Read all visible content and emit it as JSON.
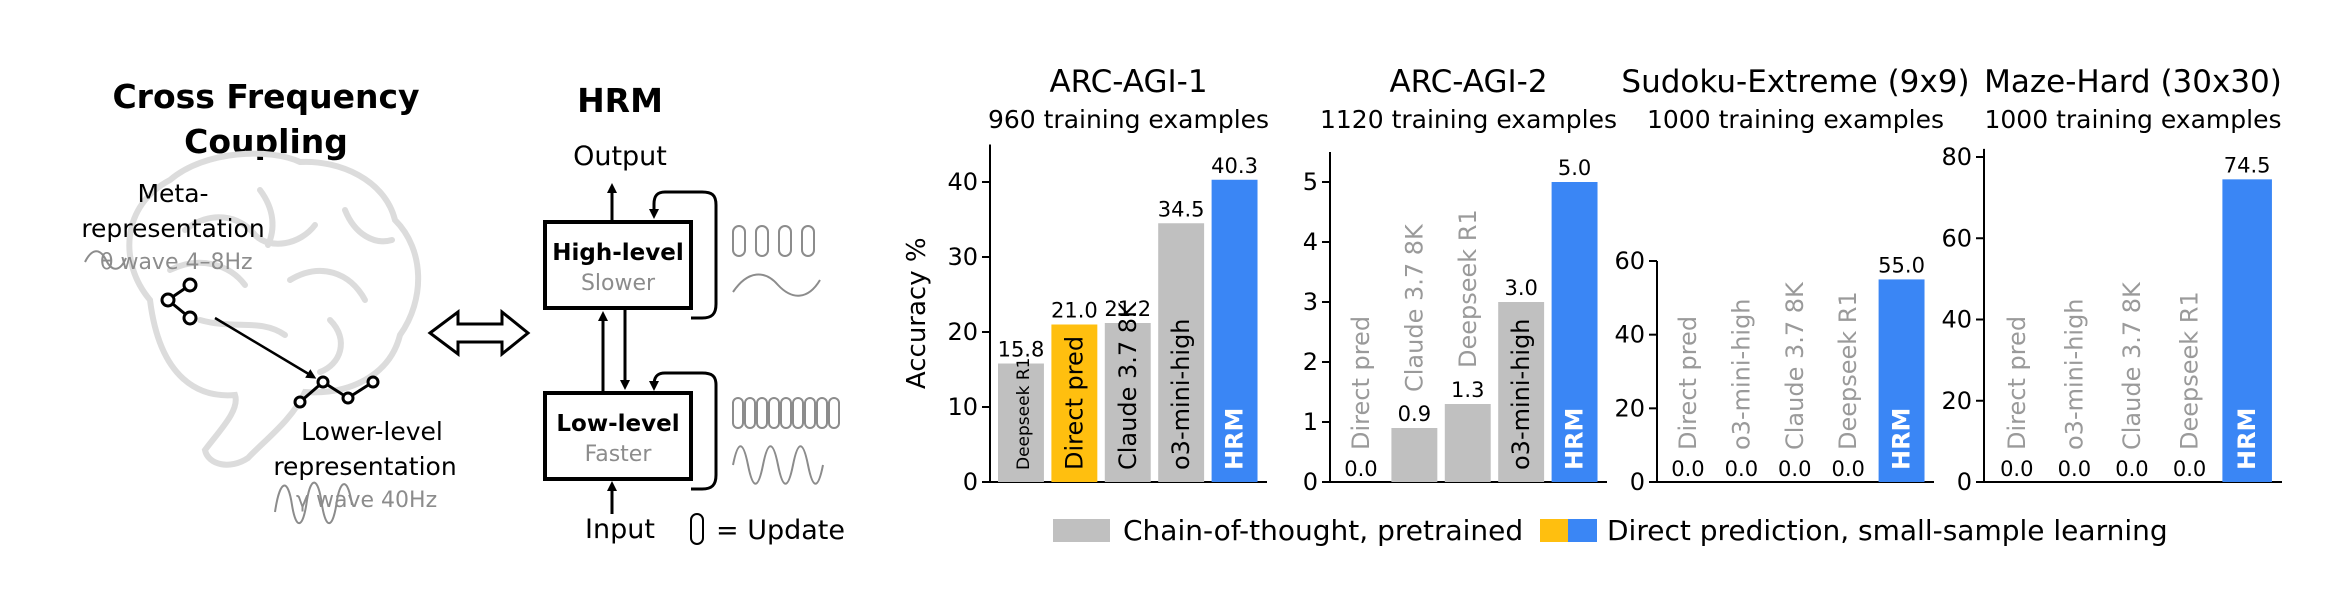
{
  "colors": {
    "cot": "#c0c0c0",
    "direct": "#ffbf0f",
    "hrm": "#3a86f5",
    "axis": "#000000",
    "brain": "#dcdcdc",
    "annotation_gray": "#8c8c8c"
  },
  "left": {
    "cfc_title_line1": "Cross Frequency",
    "cfc_title_line2": "Coupling",
    "meta_line1": "Meta-",
    "meta_line2": "representation",
    "theta": "θ wave 4–8Hz",
    "lower_line1": "Lower-level",
    "lower_line2": "representation",
    "gamma": "γ wave 40Hz",
    "hrm_title": "HRM",
    "output": "Output",
    "input": "Input",
    "high_label": "High-level",
    "high_sub": "Slower",
    "low_label": "Low-level",
    "low_sub": "Faster",
    "update_legend": "= Update"
  },
  "legend": {
    "cot_label": "Chain-of-thought, pretrained",
    "direct_label": "Direct prediction, small-sample learning"
  },
  "chart_data": [
    {
      "type": "bar",
      "title": "ARC-AGI-1",
      "subtitle": "960 training examples",
      "ylabel": "Accuracy %",
      "ylim": [
        0,
        45
      ],
      "yticks": [
        0,
        10,
        20,
        30,
        40
      ],
      "categories": [
        "Deepseek R1",
        "Direct pred",
        "Claude 3.7 8K",
        "o3-mini-high",
        "HRM"
      ],
      "values": [
        15.8,
        21.0,
        21.2,
        34.5,
        40.3
      ],
      "value_labels": [
        "15.8",
        "21.0",
        "21.2",
        "34.5",
        "40.3"
      ],
      "kinds": [
        "cot",
        "direct",
        "cot",
        "cot",
        "hrm"
      ]
    },
    {
      "type": "bar",
      "title": "ARC-AGI-2",
      "subtitle": "1120 training examples",
      "ylabel": "",
      "ylim": [
        0,
        5.5
      ],
      "yticks": [
        0,
        1,
        2,
        3,
        4,
        5
      ],
      "categories": [
        "Direct pred",
        "Claude 3.7 8K",
        "Deepseek R1",
        "o3-mini-high",
        "HRM"
      ],
      "values": [
        0.0,
        0.9,
        1.3,
        3.0,
        5.0
      ],
      "value_labels": [
        "0.0",
        "0.9",
        "1.3",
        "3.0",
        "5.0"
      ],
      "kinds": [
        "direct",
        "cot",
        "cot",
        "cot",
        "hrm"
      ]
    },
    {
      "type": "bar",
      "title": "Sudoku-Extreme (9x9)",
      "subtitle": "1000 training examples",
      "ylabel": "",
      "ylim": [
        0,
        60
      ],
      "yticks": [
        0,
        20,
        40,
        60
      ],
      "categories": [
        "Direct pred",
        "o3-mini-high",
        "Claude 3.7 8K",
        "Deepseek R1",
        "HRM"
      ],
      "values": [
        0.0,
        0.0,
        0.0,
        0.0,
        55.0
      ],
      "value_labels": [
        "0.0",
        "0.0",
        "0.0",
        "0.0",
        "55.0"
      ],
      "kinds": [
        "direct",
        "cot",
        "cot",
        "cot",
        "hrm"
      ]
    },
    {
      "type": "bar",
      "title": "Maze-Hard (30x30)",
      "subtitle": "1000 training examples",
      "ylabel": "",
      "ylim": [
        0,
        82
      ],
      "yticks": [
        0,
        20,
        40,
        60,
        80
      ],
      "categories": [
        "Direct pred",
        "o3-mini-high",
        "Claude 3.7 8K",
        "Deepseek R1",
        "HRM"
      ],
      "values": [
        0.0,
        0.0,
        0.0,
        0.0,
        74.5
      ],
      "value_labels": [
        "0.0",
        "0.0",
        "0.0",
        "0.0",
        "74.5"
      ],
      "kinds": [
        "direct",
        "cot",
        "cot",
        "cot",
        "hrm"
      ]
    }
  ]
}
